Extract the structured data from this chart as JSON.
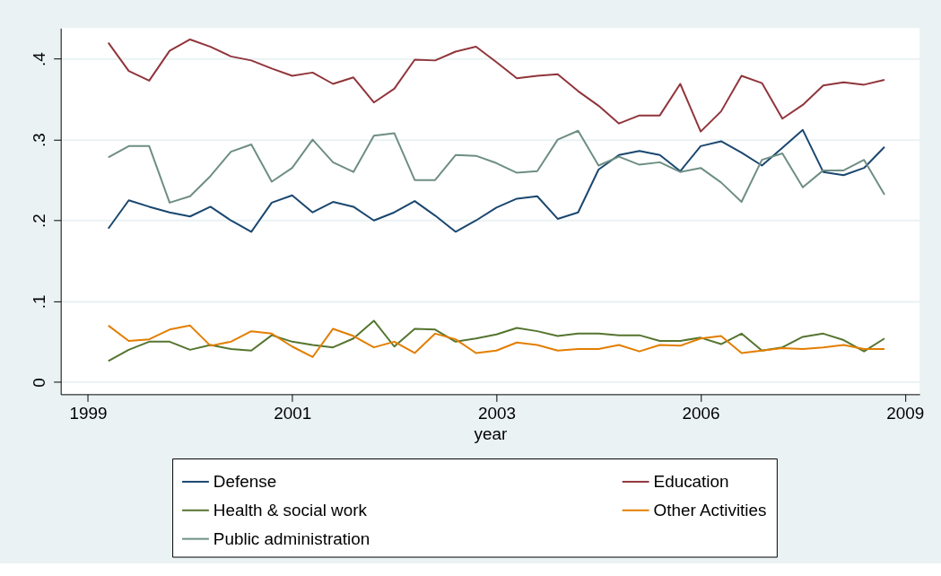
{
  "chart_data": {
    "type": "line",
    "xlabel": "year",
    "categories": [
      "1999",
      null,
      null,
      null,
      null,
      null,
      null,
      null,
      null,
      null,
      "2001",
      null,
      null,
      null,
      null,
      null,
      null,
      null,
      null,
      null,
      "2003",
      null,
      null,
      null,
      null,
      null,
      null,
      null,
      null,
      null,
      "2006",
      null,
      null,
      null,
      null,
      null,
      null,
      null,
      null,
      null,
      "2009"
    ],
    "ylim": [
      -0.015,
      0.438
    ],
    "yticks": [
      0,
      {
        "value": 0.1,
        "label": ".1"
      },
      {
        "value": 0.2,
        "label": ".2"
      },
      {
        "value": 0.3,
        "label": ".3"
      },
      {
        "value": 0.4,
        "label": ".4"
      }
    ],
    "grid": "y",
    "legend": "bottom",
    "marker": "none",
    "line_style": "solid",
    "series": [
      {
        "name": "Defense",
        "color": "#1a476f",
        "values": [
          null,
          0.19,
          0.225,
          0.217,
          0.21,
          0.205,
          0.217,
          0.2,
          0.186,
          0.222,
          0.231,
          0.21,
          0.223,
          0.217,
          0.2,
          0.21,
          0.224,
          0.206,
          0.186,
          0.2,
          0.216,
          0.227,
          0.23,
          0.202,
          0.21,
          0.263,
          0.281,
          0.286,
          0.281,
          0.261,
          0.292,
          0.298,
          0.284,
          0.268,
          0.29,
          0.312,
          0.26,
          0.256,
          0.265,
          0.291,
          null
        ]
      },
      {
        "name": "Education",
        "color": "#90353b",
        "values": [
          null,
          0.42,
          0.385,
          0.373,
          0.41,
          0.424,
          0.415,
          0.403,
          0.398,
          0.388,
          0.379,
          0.383,
          0.369,
          0.377,
          0.346,
          0.363,
          0.399,
          0.398,
          0.409,
          0.415,
          0.396,
          0.376,
          0.379,
          0.381,
          0.36,
          0.342,
          0.32,
          0.33,
          0.33,
          0.369,
          0.31,
          0.335,
          0.379,
          0.37,
          0.326,
          0.343,
          0.367,
          0.371,
          0.368,
          0.374,
          null
        ]
      },
      {
        "name": "Health & social work",
        "color": "#55752f",
        "values": [
          null,
          0.026,
          0.04,
          0.05,
          0.05,
          0.04,
          0.046,
          0.041,
          0.039,
          0.058,
          0.05,
          0.046,
          0.043,
          0.054,
          0.076,
          0.044,
          0.066,
          0.065,
          0.05,
          0.054,
          0.059,
          0.067,
          0.063,
          0.057,
          0.06,
          0.06,
          0.058,
          0.058,
          0.051,
          0.051,
          0.055,
          0.047,
          0.06,
          0.039,
          0.043,
          0.056,
          0.06,
          0.052,
          0.038,
          0.054,
          null
        ]
      },
      {
        "name": "Other Activities",
        "color": "#e37e00",
        "values": [
          null,
          0.07,
          0.051,
          0.053,
          0.065,
          0.07,
          0.045,
          0.05,
          0.063,
          0.06,
          0.044,
          0.031,
          0.066,
          0.057,
          0.043,
          0.05,
          0.036,
          0.06,
          0.053,
          0.036,
          0.039,
          0.049,
          0.046,
          0.039,
          0.041,
          0.041,
          0.046,
          0.038,
          0.046,
          0.045,
          0.054,
          0.057,
          0.036,
          0.039,
          0.042,
          0.041,
          0.043,
          0.046,
          0.041,
          0.041,
          null
        ]
      },
      {
        "name": "Public administration",
        "color": "#6e8e84",
        "values": [
          null,
          0.278,
          0.292,
          0.292,
          0.222,
          0.23,
          0.255,
          0.285,
          0.294,
          0.248,
          0.265,
          0.3,
          0.272,
          0.26,
          0.305,
          0.308,
          0.25,
          0.25,
          0.281,
          0.28,
          0.271,
          0.259,
          0.261,
          0.3,
          0.311,
          0.268,
          0.279,
          0.269,
          0.272,
          0.26,
          0.265,
          0.247,
          0.223,
          0.275,
          0.283,
          0.241,
          0.262,
          0.262,
          0.275,
          0.232,
          null
        ]
      }
    ]
  }
}
